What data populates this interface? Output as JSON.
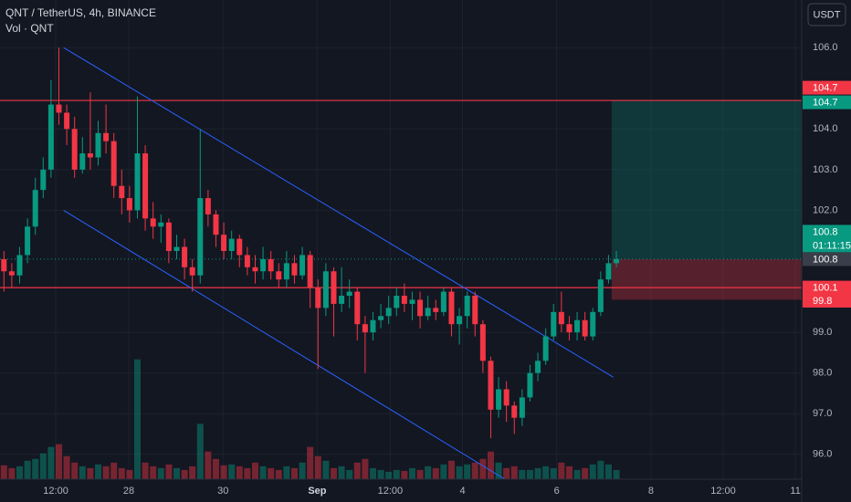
{
  "chart_data": {
    "type": "candlestick",
    "title": "QNT / TetherUS, 4h, BINANCE",
    "subtitle": "Vol · QNT",
    "currency": "USDT",
    "up_color": "#089981",
    "down_color": "#f23645",
    "xlim": [
      -0.5,
      101.6
    ],
    "ylim": [
      95.39,
      107.17
    ],
    "xticks": [
      {
        "value": 6.6,
        "label": "12:00"
      },
      {
        "value": 15.9,
        "label": "28"
      },
      {
        "value": 27.9,
        "label": "30"
      },
      {
        "value": 39.9,
        "label": "Sep"
      },
      {
        "value": 49.2,
        "label": "12:00"
      },
      {
        "value": 58.4,
        "label": "4"
      },
      {
        "value": 70.4,
        "label": "6"
      },
      {
        "value": 82.4,
        "label": "8"
      },
      {
        "value": 91.6,
        "label": "12:00"
      },
      {
        "value": 100.8,
        "label": "11"
      }
    ],
    "yticks": [
      {
        "value": 106,
        "label": "106.0"
      },
      {
        "value": 104,
        "label": "104.0"
      },
      {
        "value": 103,
        "label": "103.0"
      },
      {
        "value": 102,
        "label": "102.0"
      },
      {
        "value": 99,
        "label": "99.0"
      },
      {
        "value": 98,
        "label": "98.0"
      },
      {
        "value": 97,
        "label": "97.0"
      },
      {
        "value": 96,
        "label": "96.0"
      }
    ],
    "open": [
      100.8,
      100.5,
      100.4,
      100.9,
      101.6,
      102.5,
      103.0,
      104.6,
      104.4,
      104.0,
      103.0,
      103.4,
      103.3,
      103.9,
      103.7,
      102.6,
      102.3,
      102.0,
      103.4,
      101.8,
      101.6,
      101.7,
      101.0,
      101.1,
      100.6,
      100.4,
      102.3,
      101.9,
      101.4,
      101.0,
      101.3,
      100.9,
      100.6,
      100.5,
      100.8,
      100.5,
      100.3,
      100.7,
      100.4,
      100.9,
      100.1,
      99.6,
      100.5,
      99.7,
      99.9,
      100.0,
      99.2,
      99.0,
      99.3,
      99.4,
      99.6,
      99.9,
      99.7,
      99.8,
      99.4,
      99.6,
      99.5,
      100.0,
      99.2,
      99.4,
      99.9,
      99.2,
      98.3,
      97.1,
      97.6,
      97.2,
      96.9,
      97.4,
      98.0,
      98.3,
      98.9,
      99.5,
      99.2,
      99.0,
      99.3,
      98.9,
      99.5,
      100.3,
      100.7
    ],
    "high": [
      101.0,
      100.7,
      101.1,
      101.8,
      102.8,
      103.3,
      105.2,
      106.0,
      104.6,
      104.3,
      103.8,
      104.9,
      104.2,
      104.6,
      103.9,
      103.0,
      102.6,
      104.8,
      103.6,
      102.2,
      101.9,
      101.8,
      101.4,
      101.3,
      100.8,
      104.0,
      102.5,
      102.0,
      101.7,
      101.5,
      101.4,
      101.1,
      100.9,
      101.1,
      101.0,
      100.7,
      101.0,
      100.9,
      101.1,
      101.0,
      100.3,
      100.7,
      100.6,
      100.6,
      100.3,
      100.1,
      99.4,
      99.5,
      99.7,
      99.9,
      100.1,
      100.2,
      100.0,
      100.0,
      99.9,
      99.8,
      100.1,
      100.1,
      99.6,
      100.0,
      100.0,
      99.3,
      98.4,
      97.9,
      97.8,
      97.3,
      97.6,
      98.2,
      98.5,
      99.1,
      99.7,
      100.0,
      99.4,
      99.5,
      99.5,
      99.6,
      100.5,
      100.9,
      101.0
    ],
    "low": [
      100.0,
      100.1,
      100.2,
      100.7,
      101.4,
      102.3,
      102.8,
      104.1,
      103.6,
      102.8,
      102.9,
      103.0,
      103.1,
      103.4,
      102.3,
      101.9,
      101.7,
      101.8,
      101.5,
      101.3,
      101.2,
      100.7,
      100.8,
      100.3,
      100.0,
      100.2,
      101.6,
      101.1,
      100.8,
      100.8,
      100.6,
      100.4,
      100.2,
      100.3,
      100.3,
      100.1,
      100.1,
      100.2,
      100.3,
      99.6,
      98.1,
      99.4,
      98.9,
      99.5,
      99.6,
      98.8,
      98.0,
      98.8,
      99.1,
      99.2,
      99.4,
      99.5,
      99.3,
      99.1,
      99.3,
      99.3,
      99.4,
      98.9,
      98.7,
      99.1,
      98.9,
      98.0,
      96.4,
      96.9,
      96.8,
      96.5,
      96.7,
      97.3,
      97.8,
      98.2,
      98.8,
      99.0,
      98.8,
      98.8,
      98.8,
      98.8,
      99.4,
      100.2,
      100.6
    ],
    "close": [
      100.5,
      100.4,
      100.9,
      101.6,
      102.5,
      103.0,
      104.6,
      104.4,
      104.0,
      103.0,
      103.4,
      103.3,
      103.9,
      103.7,
      102.6,
      102.3,
      102.0,
      103.4,
      101.8,
      101.6,
      101.7,
      101.0,
      101.1,
      100.6,
      100.4,
      102.3,
      101.9,
      101.4,
      101.0,
      101.3,
      100.9,
      100.6,
      100.5,
      100.8,
      100.5,
      100.3,
      100.7,
      100.4,
      100.9,
      100.1,
      99.6,
      100.5,
      99.7,
      99.9,
      100.0,
      99.2,
      99.0,
      99.3,
      99.4,
      99.6,
      99.9,
      99.7,
      99.8,
      99.4,
      99.6,
      99.5,
      100.0,
      99.2,
      99.4,
      99.9,
      99.2,
      98.3,
      97.1,
      97.6,
      97.2,
      96.9,
      97.4,
      98.0,
      98.3,
      98.9,
      99.5,
      99.2,
      99.0,
      99.3,
      98.9,
      99.5,
      100.3,
      100.7,
      100.8
    ],
    "volume": [
      15,
      12,
      14,
      20,
      22,
      28,
      35,
      38,
      25,
      18,
      14,
      12,
      16,
      14,
      18,
      12,
      10,
      130,
      18,
      14,
      12,
      16,
      12,
      10,
      14,
      60,
      30,
      22,
      15,
      16,
      14,
      12,
      18,
      14,
      12,
      10,
      14,
      12,
      18,
      35,
      25,
      20,
      12,
      14,
      10,
      18,
      22,
      12,
      10,
      8,
      10,
      9,
      12,
      10,
      14,
      12,
      16,
      20,
      14,
      16,
      18,
      22,
      30,
      18,
      12,
      14,
      10,
      10,
      12,
      14,
      12,
      18,
      14,
      10,
      12,
      16,
      20,
      16,
      10
    ],
    "volume_ylim": [
      0,
      520
    ],
    "channel_lines": [
      {
        "x": [
          7.6,
          77.6
        ],
        "y": [
          106.0,
          97.9
        ]
      },
      {
        "x": [
          7.6,
          63.7
        ],
        "y": [
          102.0,
          95.4
        ]
      }
    ],
    "channel_color": "#2962ff",
    "levels": [
      104.7,
      100.1
    ],
    "level_color": "#f23645",
    "position": {
      "x_start": 77.4,
      "target": 104.7,
      "entry": 100.8,
      "stop": 99.8
    },
    "last_price": 100.8,
    "countdown": "01:11:15",
    "price_labels": [
      {
        "value": 104.7,
        "label": "104.7",
        "color": "#f23645"
      },
      {
        "value": 104.7,
        "label": "104.7",
        "color": "#089981"
      },
      {
        "value": 100.8,
        "label": "100.8",
        "color": "#089981"
      },
      {
        "value": 100.8,
        "label": "100.8",
        "color": "#3a3e4a"
      },
      {
        "value": 100.1,
        "label": "100.1",
        "color": "#f23645"
      },
      {
        "value": 99.8,
        "label": "99.8",
        "color": "#f23645"
      }
    ]
  }
}
